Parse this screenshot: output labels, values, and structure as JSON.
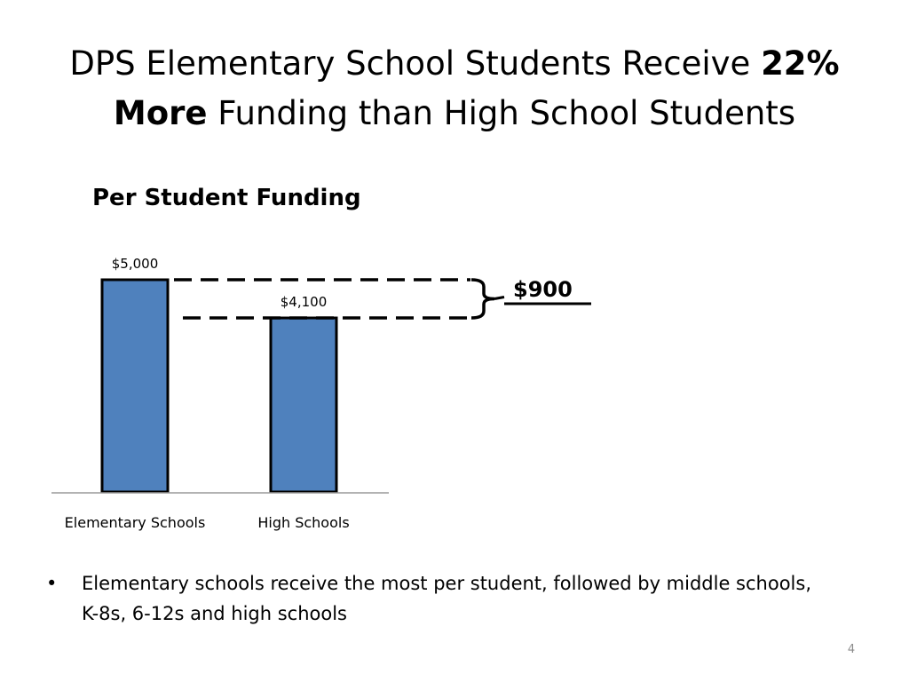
{
  "slide": {
    "title_part1": "DPS Elementary School Students Receive ",
    "title_bold1": "22%",
    "title_bold2": "More",
    "title_part2": " Funding than High School Students",
    "page_number": "4"
  },
  "chart_data": {
    "type": "bar",
    "title": "Per Student Funding",
    "categories": [
      "Elementary Schools",
      "High Schools"
    ],
    "values": [
      5000,
      4100
    ],
    "data_labels": [
      "$5,000",
      "$4,100"
    ],
    "bar_color": "#4f81bd",
    "bar_outline": "#000000",
    "ylim": [
      0,
      5000
    ],
    "grid": false,
    "legend": "none",
    "annotation": {
      "label": "$900",
      "from_value": 5000,
      "to_value": 4100
    }
  },
  "bullets": [
    "Elementary schools receive the most per student, followed by middle schools, K-8s, 6-12s and high schools"
  ]
}
